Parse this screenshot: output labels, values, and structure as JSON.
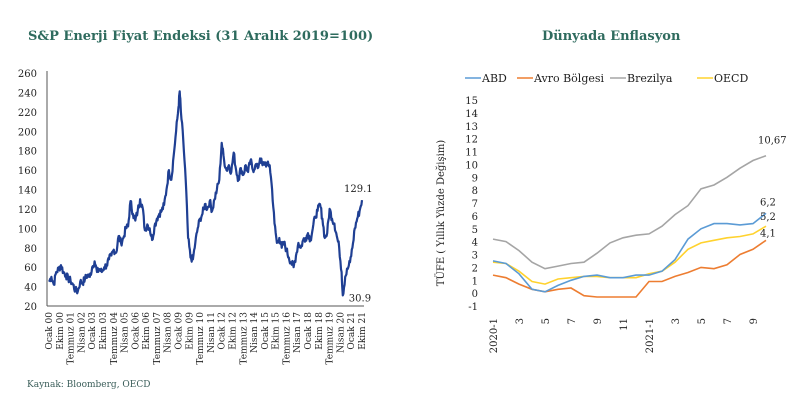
{
  "source": "Kaynak: Bloomberg, OECD",
  "colors": {
    "title": "#2e6b5e",
    "energy_line": "#1f3f93",
    "ABD": "#5b9bd5",
    "Avro Bölgesi": "#ed7d31",
    "Brezilya": "#a5a5a5",
    "OECD": "#ffd22e"
  },
  "chart_data": [
    {
      "type": "line",
      "title": "S&P Enerji Fiyat Endeksi (31 Aralık 2019=100)",
      "xlabel": "",
      "ylabel": "",
      "ylim": [
        20,
        260
      ],
      "yticks": [
        20,
        40,
        60,
        80,
        100,
        120,
        140,
        160,
        180,
        200,
        220,
        240,
        260
      ],
      "xtick_labels": [
        "Ocak 00",
        "Ekim 00",
        "Temmuz 01",
        "Nisan 02",
        "Ocak 03",
        "Ekim 03",
        "Temmuz 04",
        "Nisan 05",
        "Ocak 06",
        "Ekim 06",
        "Temmuz 07",
        "Nisan 08",
        "Ocak 09",
        "Ekim 09",
        "Temmuz 10",
        "Nisan 11",
        "Ocak 12",
        "Ekim 12",
        "Temmuz 13",
        "Nisan 14",
        "Ocak 15",
        "Ekim 15",
        "Temmuz 16",
        "Nisan 17",
        "Ocak 18",
        "Ekim 18",
        "Temmuz 19",
        "Nisan 20",
        "Ocak 21",
        "Ekim 21"
      ],
      "x_months_from_jan2000": [
        0,
        3,
        6,
        9,
        12,
        15,
        18,
        21,
        24,
        27,
        30,
        33,
        36,
        39,
        42,
        45,
        48,
        51,
        54,
        57,
        60,
        63,
        66,
        69,
        72,
        75,
        78,
        81,
        84,
        87,
        90,
        93,
        96,
        99,
        102,
        105,
        108,
        111,
        102,
        114,
        117,
        120,
        123,
        126,
        129,
        132,
        135,
        138,
        141,
        144,
        147,
        150,
        153,
        156,
        159,
        162,
        165,
        168,
        171,
        174,
        177,
        180,
        183,
        186,
        189,
        192,
        195,
        198,
        201,
        204,
        207,
        210,
        213,
        216,
        219,
        222,
        225,
        228,
        231,
        234,
        237,
        240,
        243,
        246,
        249,
        252,
        255,
        258,
        261
      ],
      "series": [
        {
          "name": "S&P Enerji",
          "points": [
            [
              0,
              45
            ],
            [
              2,
              50
            ],
            [
              4,
              42
            ],
            [
              6,
              55
            ],
            [
              8,
              58
            ],
            [
              10,
              62
            ],
            [
              12,
              55
            ],
            [
              14,
              52
            ],
            [
              16,
              48
            ],
            [
              18,
              46
            ],
            [
              20,
              42
            ],
            [
              22,
              36
            ],
            [
              24,
              35
            ],
            [
              26,
              45
            ],
            [
              28,
              44
            ],
            [
              30,
              48
            ],
            [
              32,
              52
            ],
            [
              34,
              50
            ],
            [
              36,
              60
            ],
            [
              38,
              66
            ],
            [
              40,
              55
            ],
            [
              42,
              58
            ],
            [
              44,
              55
            ],
            [
              46,
              60
            ],
            [
              48,
              62
            ],
            [
              50,
              68
            ],
            [
              52,
              72
            ],
            [
              54,
              78
            ],
            [
              56,
              75
            ],
            [
              58,
              92
            ],
            [
              60,
              85
            ],
            [
              62,
              90
            ],
            [
              64,
              100
            ],
            [
              66,
              102
            ],
            [
              68,
              128
            ],
            [
              70,
              115
            ],
            [
              72,
              108
            ],
            [
              74,
              118
            ],
            [
              76,
              130
            ],
            [
              78,
              122
            ],
            [
              80,
              98
            ],
            [
              82,
              104
            ],
            [
              84,
              100
            ],
            [
              86,
              88
            ],
            [
              88,
              102
            ],
            [
              90,
              110
            ],
            [
              92,
              115
            ],
            [
              94,
              118
            ],
            [
              96,
              124
            ],
            [
              98,
              140
            ],
            [
              100,
              160
            ],
            [
              102,
              150
            ],
            [
              104,
              175
            ],
            [
              106,
              200
            ],
            [
              108,
              225
            ],
            [
              109,
              241
            ],
            [
              110,
              220
            ],
            [
              112,
              190
            ],
            [
              114,
              150
            ],
            [
              116,
              90
            ],
            [
              118,
              70
            ],
            [
              120,
              68
            ],
            [
              122,
              85
            ],
            [
              124,
              100
            ],
            [
              126,
              110
            ],
            [
              128,
              115
            ],
            [
              130,
              125
            ],
            [
              132,
              120
            ],
            [
              134,
              128
            ],
            [
              136,
              118
            ],
            [
              138,
              130
            ],
            [
              140,
              140
            ],
            [
              142,
              150
            ],
            [
              144,
              188
            ],
            [
              146,
              170
            ],
            [
              148,
              160
            ],
            [
              150,
              165
            ],
            [
              152,
              158
            ],
            [
              154,
              178
            ],
            [
              156,
              160
            ],
            [
              158,
              150
            ],
            [
              160,
              162
            ],
            [
              162,
              155
            ],
            [
              164,
              165
            ],
            [
              166,
              158
            ],
            [
              168,
              170
            ],
            [
              170,
              160
            ],
            [
              172,
              165
            ],
            [
              174,
              162
            ],
            [
              176,
              172
            ],
            [
              178,
              165
            ],
            [
              180,
              168
            ],
            [
              182,
              165
            ],
            [
              184,
              165
            ],
            [
              186,
              140
            ],
            [
              188,
              105
            ],
            [
              190,
              85
            ],
            [
              192,
              90
            ],
            [
              194,
              80
            ],
            [
              196,
              85
            ],
            [
              198,
              78
            ],
            [
              200,
              70
            ],
            [
              202,
              65
            ],
            [
              204,
              60
            ],
            [
              206,
              72
            ],
            [
              208,
              85
            ],
            [
              210,
              80
            ],
            [
              212,
              88
            ],
            [
              214,
              90
            ],
            [
              216,
              95
            ],
            [
              218,
              88
            ],
            [
              220,
              100
            ],
            [
              222,
              112
            ],
            [
              224,
              118
            ],
            [
              226,
              125
            ],
            [
              228,
              110
            ],
            [
              230,
              90
            ],
            [
              232,
              95
            ],
            [
              234,
              120
            ],
            [
              236,
              110
            ],
            [
              238,
              105
            ],
            [
              240,
              92
            ],
            [
              242,
              80
            ],
            [
              244,
              55
            ],
            [
              245,
              30.9
            ],
            [
              247,
              50
            ],
            [
              249,
              58
            ],
            [
              251,
              65
            ],
            [
              253,
              80
            ],
            [
              255,
              100
            ],
            [
              257,
              110
            ],
            [
              259,
              118
            ],
            [
              261,
              129.1
            ]
          ]
        }
      ],
      "annotations": [
        {
          "text": "129.1",
          "x": 261,
          "y": 129.1,
          "position": "above"
        },
        {
          "text": "30.9",
          "x": 245,
          "y": 30.9,
          "position": "below-right"
        }
      ],
      "grid": false,
      "legend": "none"
    },
    {
      "type": "line",
      "title": "Dünyada Enflasyon",
      "xlabel": "",
      "ylabel": "TÜFE ( Yıllık Yüzde Değişim)",
      "ylim": [
        -1,
        15
      ],
      "yticks": [
        -1,
        0,
        1,
        2,
        3,
        4,
        5,
        6,
        7,
        8,
        9,
        10,
        11,
        12,
        13,
        14,
        15
      ],
      "categories": [
        "2020-1",
        "2",
        "3",
        "4",
        "5",
        "6",
        "7",
        "8",
        "9",
        "10",
        "11",
        "12",
        "2021-1",
        "2",
        "3",
        "4",
        "5",
        "6",
        "7",
        "8",
        "9",
        "10"
      ],
      "xtick_labels": [
        "2020-1",
        "3",
        "5",
        "7",
        "9",
        "11",
        "2021-1",
        "3",
        "5",
        "7",
        "9"
      ],
      "series": [
        {
          "name": "ABD",
          "values": [
            2.5,
            2.3,
            1.5,
            0.3,
            0.1,
            0.6,
            1.0,
            1.3,
            1.4,
            1.2,
            1.2,
            1.4,
            1.4,
            1.7,
            2.6,
            4.2,
            5.0,
            5.4,
            5.4,
            5.3,
            5.4,
            6.2
          ]
        },
        {
          "name": "Avro Bölgesi",
          "values": [
            1.4,
            1.2,
            0.7,
            0.3,
            0.1,
            0.3,
            0.4,
            -0.2,
            -0.3,
            -0.3,
            -0.3,
            -0.3,
            0.9,
            0.9,
            1.3,
            1.6,
            2.0,
            1.9,
            2.2,
            3.0,
            3.4,
            4.1
          ]
        },
        {
          "name": "Brezilya",
          "values": [
            4.2,
            4.0,
            3.3,
            2.4,
            1.9,
            2.1,
            2.3,
            2.4,
            3.1,
            3.9,
            4.3,
            4.5,
            4.6,
            5.2,
            6.1,
            6.8,
            8.1,
            8.4,
            9.0,
            9.7,
            10.3,
            10.67
          ]
        },
        {
          "name": "OECD",
          "values": [
            2.4,
            2.3,
            1.7,
            0.9,
            0.7,
            1.1,
            1.2,
            1.3,
            1.3,
            1.2,
            1.2,
            1.2,
            1.5,
            1.7,
            2.4,
            3.4,
            3.9,
            4.1,
            4.3,
            4.4,
            4.6,
            5.2
          ]
        }
      ],
      "annotations": [
        {
          "text": "10,67",
          "series": "Brezilya"
        },
        {
          "text": "6,2",
          "series": "ABD"
        },
        {
          "text": "5,2",
          "series": "OECD"
        },
        {
          "text": "4,1",
          "series": "Avro Bölgesi"
        }
      ],
      "legend": "top",
      "grid": false
    }
  ]
}
